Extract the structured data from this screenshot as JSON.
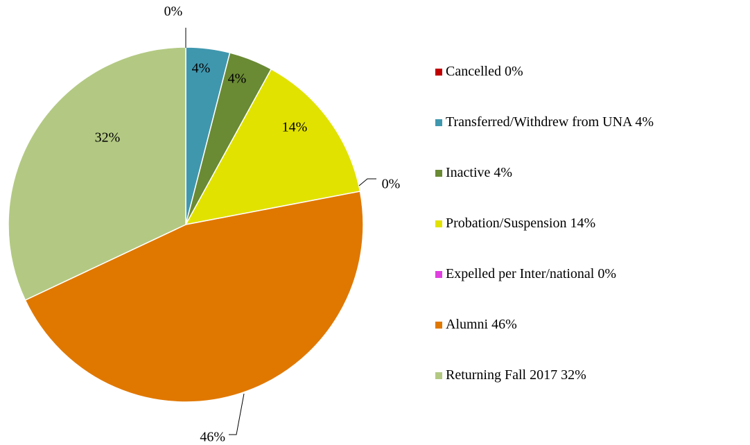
{
  "chart_data": {
    "type": "pie",
    "categories": [
      "Cancelled",
      "Transferred/Withdrew from UNA",
      "Inactive",
      "Probation/Suspension",
      "Expelled per Inter/national",
      "Alumni",
      "Returning Fall 2017"
    ],
    "values": [
      0,
      4,
      4,
      14,
      0,
      46,
      32
    ],
    "value_labels": [
      "0%",
      "4%",
      "4%",
      "14%",
      "0%",
      "46%",
      "32%"
    ],
    "colors": [
      "#c00000",
      "#3f97ae",
      "#6a8a34",
      "#e2e200",
      "#e040e0",
      "#e07800",
      "#b3c983"
    ],
    "legend": "right"
  }
}
